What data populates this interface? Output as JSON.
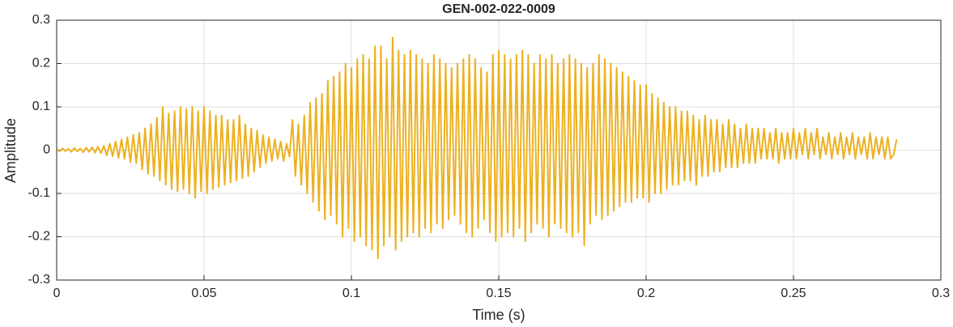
{
  "chart_data": {
    "type": "line",
    "title": "GEN-002-022-0009",
    "xlabel": "Time (s)",
    "ylabel": "Amplitude",
    "xlim": [
      0,
      0.3
    ],
    "ylim": [
      -0.3,
      0.3
    ],
    "xticks": [
      0,
      0.05,
      0.1,
      0.15,
      0.2,
      0.25,
      0.3
    ],
    "yticks": [
      -0.3,
      -0.2,
      -0.1,
      0,
      0.1,
      0.2,
      0.3
    ],
    "grid": true,
    "x": [
      0,
      0.001,
      0.002,
      0.003,
      0.004,
      0.005,
      0.006,
      0.007,
      0.008,
      0.009,
      0.01,
      0.011,
      0.012,
      0.013,
      0.014,
      0.015,
      0.016,
      0.017,
      0.018,
      0.019,
      0.02,
      0.021,
      0.022,
      0.023,
      0.024,
      0.025,
      0.026,
      0.027,
      0.028,
      0.029,
      0.03,
      0.031,
      0.032,
      0.033,
      0.034,
      0.035,
      0.036,
      0.037,
      0.038,
      0.039,
      0.04,
      0.041,
      0.042,
      0.043,
      0.044,
      0.045,
      0.046,
      0.047,
      0.048,
      0.049,
      0.05,
      0.051,
      0.052,
      0.053,
      0.054,
      0.055,
      0.056,
      0.057,
      0.058,
      0.059,
      0.06,
      0.061,
      0.062,
      0.063,
      0.064,
      0.065,
      0.066,
      0.067,
      0.068,
      0.069,
      0.07,
      0.071,
      0.072,
      0.073,
      0.074,
      0.075,
      0.076,
      0.077,
      0.078,
      0.079,
      0.08,
      0.081,
      0.082,
      0.083,
      0.084,
      0.085,
      0.086,
      0.087,
      0.088,
      0.089,
      0.09,
      0.091,
      0.092,
      0.093,
      0.094,
      0.095,
      0.096,
      0.097,
      0.098,
      0.099,
      0.1,
      0.101,
      0.102,
      0.103,
      0.104,
      0.105,
      0.106,
      0.107,
      0.108,
      0.109,
      0.11,
      0.111,
      0.112,
      0.113,
      0.114,
      0.115,
      0.116,
      0.117,
      0.118,
      0.119,
      0.12,
      0.121,
      0.122,
      0.123,
      0.124,
      0.125,
      0.126,
      0.127,
      0.128,
      0.129,
      0.13,
      0.131,
      0.132,
      0.133,
      0.134,
      0.135,
      0.136,
      0.137,
      0.138,
      0.139,
      0.14,
      0.141,
      0.142,
      0.143,
      0.144,
      0.145,
      0.146,
      0.147,
      0.148,
      0.149,
      0.15,
      0.151,
      0.152,
      0.153,
      0.154,
      0.155,
      0.156,
      0.157,
      0.158,
      0.159,
      0.16,
      0.161,
      0.162,
      0.163,
      0.164,
      0.165,
      0.166,
      0.167,
      0.168,
      0.169,
      0.17,
      0.171,
      0.172,
      0.173,
      0.174,
      0.175,
      0.176,
      0.177,
      0.178,
      0.179,
      0.18,
      0.181,
      0.182,
      0.183,
      0.184,
      0.185,
      0.186,
      0.187,
      0.188,
      0.189,
      0.19,
      0.191,
      0.192,
      0.193,
      0.194,
      0.195,
      0.196,
      0.197,
      0.198,
      0.199,
      0.2,
      0.201,
      0.202,
      0.203,
      0.204,
      0.205,
      0.206,
      0.207,
      0.208,
      0.209,
      0.21,
      0.211,
      0.212,
      0.213,
      0.214,
      0.215,
      0.216,
      0.217,
      0.218,
      0.219,
      0.22,
      0.221,
      0.222,
      0.223,
      0.224,
      0.225,
      0.226,
      0.227,
      0.228,
      0.229,
      0.23,
      0.231,
      0.232,
      0.233,
      0.234,
      0.235,
      0.236,
      0.237,
      0.238,
      0.239,
      0.24,
      0.241,
      0.242,
      0.243,
      0.244,
      0.245,
      0.246,
      0.247,
      0.248,
      0.249,
      0.25,
      0.251,
      0.252,
      0.253,
      0.254,
      0.255,
      0.256,
      0.257,
      0.258,
      0.259,
      0.26,
      0.261,
      0.262,
      0.263,
      0.264,
      0.265,
      0.266,
      0.267,
      0.268,
      0.269,
      0.27,
      0.271,
      0.272,
      0.273,
      0.274,
      0.275,
      0.276,
      0.277,
      0.278,
      0.279,
      0.28,
      0.281,
      0.282,
      0.283,
      0.284,
      0.285
    ],
    "series": [
      {
        "color": "#EDB120",
        "values": [
          0.002,
          -0.003,
          0.004,
          -0.002,
          0.003,
          -0.004,
          0.005,
          -0.003,
          0.004,
          -0.005,
          0.006,
          -0.004,
          0.007,
          -0.006,
          0.008,
          -0.007,
          0.01,
          -0.012,
          0.015,
          -0.014,
          0.02,
          -0.018,
          0.025,
          -0.02,
          0.03,
          -0.028,
          0.035,
          -0.03,
          0.04,
          -0.045,
          0.05,
          -0.055,
          0.06,
          -0.06,
          0.075,
          -0.07,
          0.1,
          -0.08,
          0.085,
          -0.09,
          0.09,
          -0.095,
          0.1,
          -0.09,
          0.095,
          -0.1,
          0.1,
          -0.11,
          0.09,
          -0.095,
          0.1,
          -0.1,
          0.09,
          -0.09,
          0.08,
          -0.085,
          0.08,
          -0.08,
          0.07,
          -0.075,
          0.07,
          -0.07,
          0.08,
          -0.065,
          0.06,
          -0.06,
          0.05,
          -0.05,
          0.045,
          -0.04,
          0.035,
          -0.03,
          0.03,
          -0.025,
          0.025,
          -0.02,
          0.02,
          -0.025,
          0.015,
          -0.015,
          0.07,
          -0.06,
          0.06,
          -0.08,
          0.08,
          -0.1,
          0.11,
          -0.12,
          0.12,
          -0.14,
          0.13,
          -0.16,
          0.16,
          -0.15,
          0.17,
          -0.17,
          0.18,
          -0.2,
          0.2,
          -0.18,
          0.19,
          -0.21,
          0.21,
          -0.2,
          0.22,
          -0.22,
          0.21,
          -0.23,
          0.24,
          -0.25,
          0.24,
          -0.22,
          0.21,
          -0.2,
          0.26,
          -0.23,
          0.23,
          -0.21,
          0.22,
          -0.2,
          0.23,
          -0.19,
          0.22,
          -0.2,
          0.21,
          -0.18,
          0.2,
          -0.19,
          0.22,
          -0.17,
          0.21,
          -0.18,
          0.2,
          -0.16,
          0.19,
          -0.15,
          0.2,
          -0.17,
          0.21,
          -0.19,
          0.22,
          -0.2,
          0.21,
          -0.18,
          0.19,
          -0.16,
          0.18,
          -0.19,
          0.22,
          -0.21,
          0.23,
          -0.2,
          0.22,
          -0.19,
          0.21,
          -0.2,
          0.22,
          -0.18,
          0.23,
          -0.21,
          0.22,
          -0.19,
          0.2,
          -0.17,
          0.22,
          -0.18,
          0.21,
          -0.2,
          0.22,
          -0.17,
          0.2,
          -0.18,
          0.21,
          -0.19,
          0.22,
          -0.2,
          0.21,
          -0.19,
          0.2,
          -0.22,
          0.19,
          -0.17,
          0.2,
          -0.15,
          0.22,
          -0.16,
          0.21,
          -0.15,
          0.2,
          -0.14,
          0.19,
          -0.13,
          0.18,
          -0.12,
          0.17,
          -0.12,
          0.16,
          -0.11,
          0.15,
          -0.11,
          0.15,
          -0.12,
          0.13,
          -0.1,
          0.12,
          -0.1,
          0.11,
          -0.09,
          0.1,
          -0.08,
          0.1,
          -0.08,
          0.09,
          -0.07,
          0.09,
          -0.07,
          0.08,
          -0.08,
          0.07,
          -0.06,
          0.08,
          -0.06,
          0.07,
          -0.05,
          0.07,
          -0.05,
          0.06,
          -0.04,
          0.07,
          -0.04,
          0.06,
          -0.04,
          0.05,
          -0.03,
          0.06,
          -0.03,
          0.05,
          -0.03,
          0.05,
          -0.02,
          0.05,
          -0.02,
          0.04,
          -0.02,
          0.05,
          -0.03,
          0.04,
          -0.02,
          0.04,
          -0.02,
          0.05,
          -0.02,
          0.04,
          -0.01,
          0.05,
          -0.02,
          0.04,
          -0.01,
          0.05,
          -0.02,
          0.03,
          -0.01,
          0.04,
          -0.02,
          0.03,
          -0.01,
          0.04,
          -0.02,
          0.03,
          -0.01,
          0.04,
          -0.02,
          0.03,
          -0.01,
          0.03,
          -0.02,
          0.04,
          -0.02,
          0.03,
          -0.01,
          0.03,
          -0.02,
          0.03,
          -0.02,
          -0.01,
          0.025
        ]
      }
    ]
  }
}
